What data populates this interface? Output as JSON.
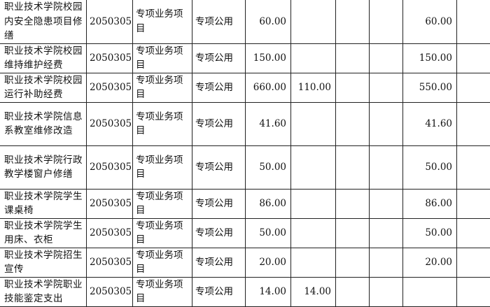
{
  "rows": [
    {
      "name": "职业技术学院校园内安全隐患项目修缮",
      "code": "2050305",
      "type": "专项业务项目",
      "category": "专项公用",
      "total": "60.00",
      "c6": "",
      "c7": "",
      "c8": "",
      "c9": "60.00",
      "c10": ""
    },
    {
      "name": "职业技术学院校园维持维护经费",
      "code": "2050305",
      "type": "专项业务项目",
      "category": "专项公用",
      "total": "150.00",
      "c6": "",
      "c7": "",
      "c8": "",
      "c9": "150.00",
      "c10": ""
    },
    {
      "name": "职业技术学院校园运行补助经费",
      "code": "2050305",
      "type": "专项业务项目",
      "category": "专项公用",
      "total": "660.00",
      "c6": "110.00",
      "c7": "",
      "c8": "",
      "c9": "550.00",
      "c10": ""
    },
    {
      "name": "职业技术学院信息系教室维修改造",
      "code": "2050305",
      "type": "专项业务项目",
      "category": "专项公用",
      "total": "41.60",
      "c6": "",
      "c7": "",
      "c8": "",
      "c9": "41.60",
      "c10": ""
    },
    {
      "name": "职业技术学院行政教学楼窗户修缮",
      "code": "2050305",
      "type": "专项业务项目",
      "category": "专项公用",
      "total": "50.00",
      "c6": "",
      "c7": "",
      "c8": "",
      "c9": "50.00",
      "c10": ""
    },
    {
      "name": "职业技术学院学生课桌椅",
      "code": "2050305",
      "type": "专项业务项目",
      "category": "专项公用",
      "total": "86.00",
      "c6": "",
      "c7": "",
      "c8": "",
      "c9": "86.00",
      "c10": ""
    },
    {
      "name": "职业技术学院学生用床、衣柜",
      "code": "2050305",
      "type": "专项业务项目",
      "category": "专项公用",
      "total": "50.00",
      "c6": "",
      "c7": "",
      "c8": "",
      "c9": "50.00",
      "c10": ""
    },
    {
      "name": "职业技术学院招生宣传",
      "code": "2050305",
      "type": "专项业务项目",
      "category": "专项公用",
      "total": "20.00",
      "c6": "",
      "c7": "",
      "c8": "",
      "c9": "20.00",
      "c10": ""
    },
    {
      "name": "职业技术学院职业技能鉴定支出",
      "code": "2050305",
      "type": "专项业务项目",
      "category": "专项公用",
      "total": "14.00",
      "c6": "14.00",
      "c7": "",
      "c8": "",
      "c9": "",
      "c10": ""
    }
  ]
}
